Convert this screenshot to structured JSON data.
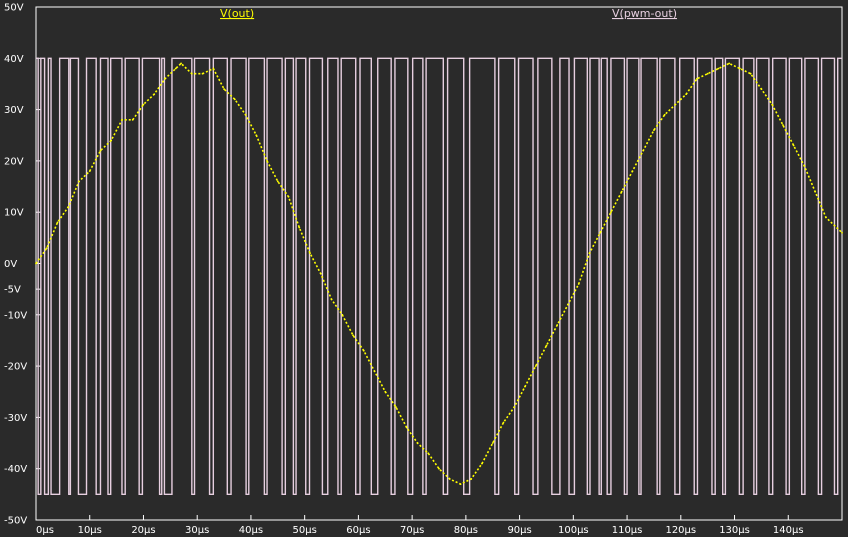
{
  "chart_data": {
    "type": "line",
    "title": "",
    "xlabel": "",
    "ylabel": "",
    "x_unit": "µs",
    "y_unit": "V",
    "xlim": [
      0,
      150
    ],
    "ylim": [
      -50,
      50
    ],
    "x_ticks": [
      "0µs",
      "10µs",
      "20µs",
      "30µs",
      "40µs",
      "50µs",
      "60µs",
      "70µs",
      "80µs",
      "90µs",
      "100µs",
      "110µs",
      "120µs",
      "130µs",
      "140µs"
    ],
    "y_ticks": [
      "50V",
      "40V",
      "30V",
      "20V",
      "10V",
      "0V",
      "-5V",
      "-10V",
      "-20V",
      "-30V",
      "-40V",
      "-50V"
    ],
    "grid": false,
    "legend_position": "top",
    "series": [
      {
        "name": "V(out)",
        "color": "#ffff00",
        "style": "dotted",
        "x": [
          0,
          2,
          4,
          6,
          8,
          10,
          12,
          14,
          16,
          18,
          20,
          22,
          24,
          26,
          27,
          29,
          31,
          33,
          35,
          37,
          39,
          41,
          43,
          45,
          47,
          49,
          51,
          53,
          55,
          57,
          59,
          61,
          63,
          65,
          67,
          69,
          71,
          73,
          75,
          77,
          79,
          81,
          83,
          85,
          87,
          89,
          91,
          93,
          95,
          97,
          99,
          101,
          103,
          105,
          107,
          109,
          111,
          113,
          115,
          117,
          119,
          121,
          123,
          125,
          127,
          129,
          131,
          133,
          135,
          137,
          139,
          141,
          143,
          145,
          147,
          150
        ],
        "y": [
          0,
          3,
          8,
          11,
          16,
          18,
          22,
          24,
          28,
          28,
          31,
          33,
          36,
          38,
          39,
          37,
          37,
          38,
          34,
          32,
          29,
          25,
          20,
          16,
          13,
          7,
          2,
          -2,
          -7,
          -10,
          -14,
          -17,
          -21,
          -25,
          -28,
          -32,
          -35,
          -37,
          -40,
          -42,
          -43,
          -42,
          -39,
          -35,
          -31,
          -28,
          -24,
          -20,
          -16,
          -12,
          -8,
          -4,
          2,
          6,
          10,
          14,
          18,
          22,
          26,
          29,
          31,
          33,
          36,
          37,
          38,
          39,
          38,
          37,
          34,
          31,
          27,
          23,
          19,
          14,
          9,
          6
        ]
      },
      {
        "name": "V(pwm-out)",
        "color": "#e7cfe0",
        "style": "solid",
        "high": 40,
        "low": -45,
        "edges": [
          0.4,
          0.9,
          1.6,
          2.3,
          2.8,
          4.4,
          6.1,
          6.4,
          7.9,
          9.4,
          11.2,
          12.0,
          13.4,
          13.9,
          16.0,
          16.6,
          19.2,
          19.8,
          23.0,
          23.4,
          23.9,
          25.3,
          29.0,
          29.5,
          32.3,
          33.0,
          35.6,
          36.3,
          39.1,
          39.6,
          42.5,
          43.0,
          45.8,
          46.4,
          47.9,
          48.4,
          50.2,
          50.9,
          53.3,
          54.3,
          56.2,
          56.8,
          59.5,
          60.3,
          62.4,
          63.6,
          66.1,
          66.8,
          69.2,
          70.1,
          72.0,
          72.6,
          75.8,
          76.6,
          79.6,
          80.7,
          85.4,
          86.1,
          89.1,
          89.8,
          92.5,
          93.4,
          96.0,
          97.5,
          99.2,
          100.2,
          102.6,
          103.1,
          104.8,
          105.2,
          106.3,
          107.0,
          109.5,
          110.0,
          112.2,
          112.6,
          115.6,
          116.1,
          118.9,
          119.8,
          122.5,
          123.1,
          125.8,
          126.4,
          127.8,
          128.3,
          130.9,
          131.6,
          133.6,
          134.1,
          136.4,
          137.1,
          139.6,
          140.2,
          142.5,
          143.1,
          145.6,
          146.2,
          148.6,
          149.2
        ]
      }
    ]
  }
}
